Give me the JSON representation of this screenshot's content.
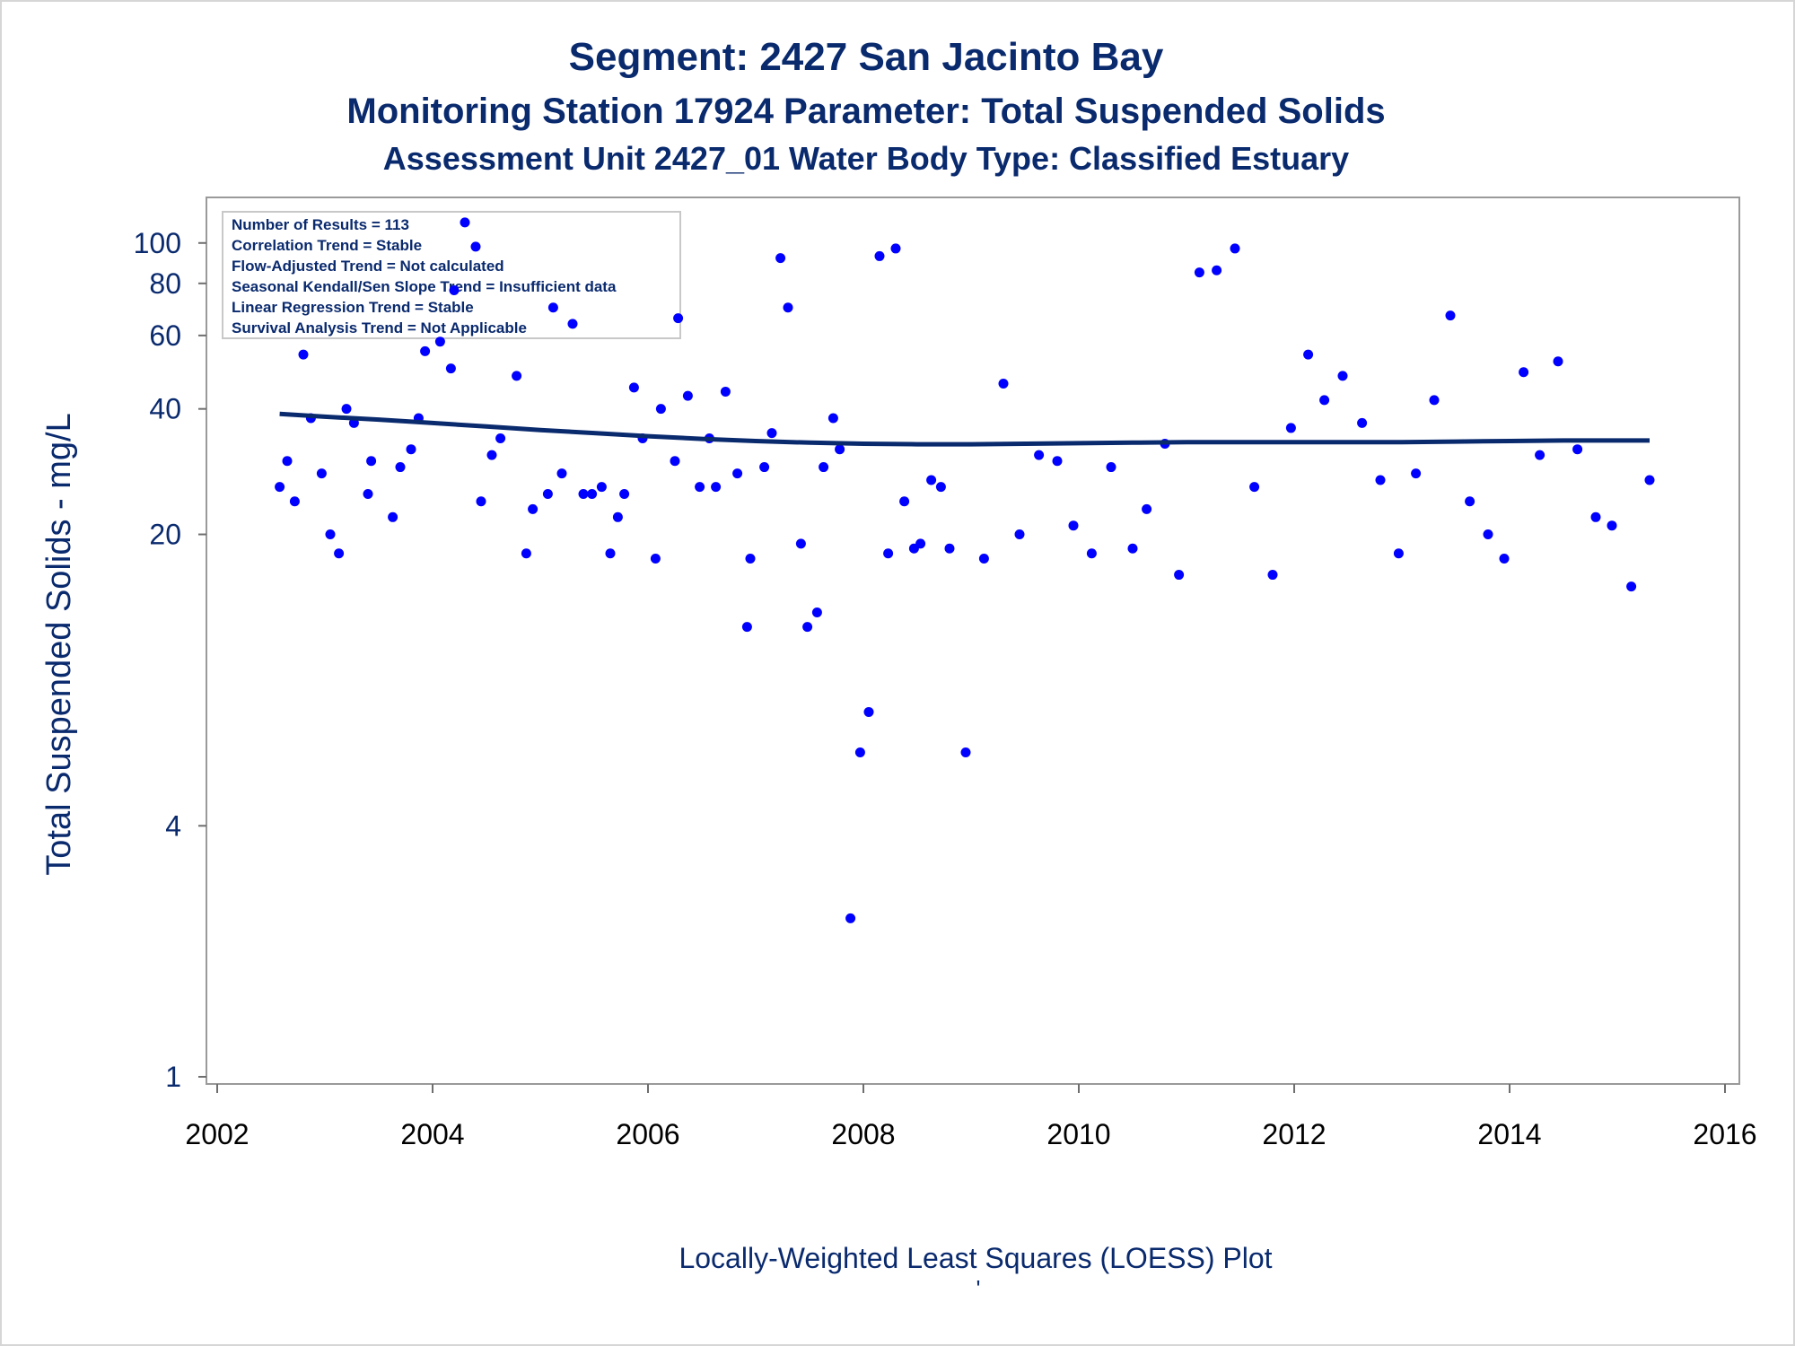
{
  "chart_data": {
    "type": "scatter",
    "title": "Segment: 2427  San Jacinto Bay",
    "subtitle1": "Monitoring Station 17924 Parameter: Total Suspended Solids",
    "subtitle2": "Assessment Unit 2427_01   Water Body Type: Classified Estuary",
    "ylabel": "Total Suspended Solids - mg/L",
    "footnote": "Locally-Weighted Least Squares (LOESS) Plot",
    "footnote_mark": "'",
    "xlim": [
      2002,
      2016
    ],
    "ylim": [
      1,
      120
    ],
    "yscale": "log",
    "xticks": [
      2002,
      2004,
      2006,
      2008,
      2010,
      2012,
      2014,
      2016
    ],
    "xtick_labels": [
      "2002",
      "2004",
      "2006",
      "2008",
      "2010",
      "2012",
      "2014",
      "2016"
    ],
    "yticks": [
      1,
      4,
      20,
      40,
      60,
      80,
      100
    ],
    "ytick_labels": [
      "1",
      "4",
      "20",
      "40",
      "60",
      "80",
      "100"
    ],
    "grid": false,
    "stats_box": [
      "Number of Results = 113",
      "Correlation Trend = Stable",
      "Flow-Adjusted Trend = Not calculated",
      "Seasonal Kendall/Sen Slope Trend = Insufficient data",
      "Linear Regression Trend = Stable",
      "Survival Analysis Trend = Not Applicable"
    ],
    "colors": {
      "points": "#0000ff",
      "loess": "#0a2a6e",
      "text": "#0a2a6e",
      "axes": "#9a9a9a"
    },
    "points": [
      {
        "x": 2002.58,
        "y": 26
      },
      {
        "x": 2002.65,
        "y": 30
      },
      {
        "x": 2002.72,
        "y": 24
      },
      {
        "x": 2002.8,
        "y": 54
      },
      {
        "x": 2002.87,
        "y": 38
      },
      {
        "x": 2002.97,
        "y": 28
      },
      {
        "x": 2003.05,
        "y": 20
      },
      {
        "x": 2003.13,
        "y": 18
      },
      {
        "x": 2003.2,
        "y": 40
      },
      {
        "x": 2003.27,
        "y": 37
      },
      {
        "x": 2003.4,
        "y": 25
      },
      {
        "x": 2003.43,
        "y": 30
      },
      {
        "x": 2003.63,
        "y": 22
      },
      {
        "x": 2003.7,
        "y": 29
      },
      {
        "x": 2003.8,
        "y": 32
      },
      {
        "x": 2003.87,
        "y": 38
      },
      {
        "x": 2003.93,
        "y": 55
      },
      {
        "x": 2004.07,
        "y": 58
      },
      {
        "x": 2004.17,
        "y": 50
      },
      {
        "x": 2004.2,
        "y": 77
      },
      {
        "x": 2004.3,
        "y": 112
      },
      {
        "x": 2004.4,
        "y": 98
      },
      {
        "x": 2004.45,
        "y": 24
      },
      {
        "x": 2004.55,
        "y": 31
      },
      {
        "x": 2004.63,
        "y": 34
      },
      {
        "x": 2004.78,
        "y": 48
      },
      {
        "x": 2004.87,
        "y": 18
      },
      {
        "x": 2004.93,
        "y": 23
      },
      {
        "x": 2005.07,
        "y": 25
      },
      {
        "x": 2005.12,
        "y": 70
      },
      {
        "x": 2005.2,
        "y": 28
      },
      {
        "x": 2005.3,
        "y": 64
      },
      {
        "x": 2005.4,
        "y": 25
      },
      {
        "x": 2005.48,
        "y": 25
      },
      {
        "x": 2005.57,
        "y": 26
      },
      {
        "x": 2005.65,
        "y": 18
      },
      {
        "x": 2005.72,
        "y": 22
      },
      {
        "x": 2005.78,
        "y": 25
      },
      {
        "x": 2005.87,
        "y": 45
      },
      {
        "x": 2005.95,
        "y": 34
      },
      {
        "x": 2006.07,
        "y": 17.5
      },
      {
        "x": 2006.12,
        "y": 40
      },
      {
        "x": 2006.25,
        "y": 30
      },
      {
        "x": 2006.28,
        "y": 66
      },
      {
        "x": 2006.37,
        "y": 43
      },
      {
        "x": 2006.48,
        "y": 26
      },
      {
        "x": 2006.57,
        "y": 34
      },
      {
        "x": 2006.63,
        "y": 26
      },
      {
        "x": 2006.72,
        "y": 44
      },
      {
        "x": 2006.83,
        "y": 28
      },
      {
        "x": 2006.92,
        "y": 12
      },
      {
        "x": 2006.95,
        "y": 17.5
      },
      {
        "x": 2007.08,
        "y": 29
      },
      {
        "x": 2007.15,
        "y": 35
      },
      {
        "x": 2007.23,
        "y": 92
      },
      {
        "x": 2007.3,
        "y": 70
      },
      {
        "x": 2007.42,
        "y": 19
      },
      {
        "x": 2007.48,
        "y": 12
      },
      {
        "x": 2007.57,
        "y": 13
      },
      {
        "x": 2007.63,
        "y": 29
      },
      {
        "x": 2007.72,
        "y": 38
      },
      {
        "x": 2007.78,
        "y": 32
      },
      {
        "x": 2007.88,
        "y": 2.4
      },
      {
        "x": 2007.97,
        "y": 6
      },
      {
        "x": 2008.05,
        "y": 7.5
      },
      {
        "x": 2008.15,
        "y": 93
      },
      {
        "x": 2008.23,
        "y": 18
      },
      {
        "x": 2008.3,
        "y": 97
      },
      {
        "x": 2008.38,
        "y": 24
      },
      {
        "x": 2008.47,
        "y": 18.5
      },
      {
        "x": 2008.53,
        "y": 19
      },
      {
        "x": 2008.63,
        "y": 27
      },
      {
        "x": 2008.72,
        "y": 26
      },
      {
        "x": 2008.8,
        "y": 18.5
      },
      {
        "x": 2008.95,
        "y": 6
      },
      {
        "x": 2009.12,
        "y": 17.5
      },
      {
        "x": 2009.3,
        "y": 46
      },
      {
        "x": 2009.45,
        "y": 20
      },
      {
        "x": 2009.63,
        "y": 31
      },
      {
        "x": 2009.8,
        "y": 30
      },
      {
        "x": 2009.95,
        "y": 21
      },
      {
        "x": 2010.12,
        "y": 18
      },
      {
        "x": 2010.3,
        "y": 29
      },
      {
        "x": 2010.5,
        "y": 18.5
      },
      {
        "x": 2010.63,
        "y": 23
      },
      {
        "x": 2010.8,
        "y": 33
      },
      {
        "x": 2010.93,
        "y": 16
      },
      {
        "x": 2011.12,
        "y": 85
      },
      {
        "x": 2011.28,
        "y": 86
      },
      {
        "x": 2011.45,
        "y": 97
      },
      {
        "x": 2011.63,
        "y": 26
      },
      {
        "x": 2011.8,
        "y": 16
      },
      {
        "x": 2011.97,
        "y": 36
      },
      {
        "x": 2012.13,
        "y": 54
      },
      {
        "x": 2012.28,
        "y": 42
      },
      {
        "x": 2012.45,
        "y": 48
      },
      {
        "x": 2012.63,
        "y": 37
      },
      {
        "x": 2012.8,
        "y": 27
      },
      {
        "x": 2012.97,
        "y": 18
      },
      {
        "x": 2013.13,
        "y": 28
      },
      {
        "x": 2013.3,
        "y": 42
      },
      {
        "x": 2013.45,
        "y": 67
      },
      {
        "x": 2013.63,
        "y": 24
      },
      {
        "x": 2013.8,
        "y": 20
      },
      {
        "x": 2013.95,
        "y": 17.5
      },
      {
        "x": 2014.13,
        "y": 49
      },
      {
        "x": 2014.28,
        "y": 31
      },
      {
        "x": 2014.45,
        "y": 52
      },
      {
        "x": 2014.63,
        "y": 32
      },
      {
        "x": 2014.8,
        "y": 22
      },
      {
        "x": 2014.95,
        "y": 21
      },
      {
        "x": 2015.13,
        "y": 15
      },
      {
        "x": 2015.3,
        "y": 27
      }
    ],
    "loess": [
      {
        "x": 2002.58,
        "y": 38.9
      },
      {
        "x": 2003.0,
        "y": 38.3
      },
      {
        "x": 2003.5,
        "y": 37.7
      },
      {
        "x": 2004.0,
        "y": 37.0
      },
      {
        "x": 2004.5,
        "y": 36.3
      },
      {
        "x": 2005.0,
        "y": 35.6
      },
      {
        "x": 2005.5,
        "y": 35.0
      },
      {
        "x": 2006.0,
        "y": 34.4
      },
      {
        "x": 2006.5,
        "y": 33.9
      },
      {
        "x": 2007.0,
        "y": 33.5
      },
      {
        "x": 2007.5,
        "y": 33.2
      },
      {
        "x": 2008.0,
        "y": 33.0
      },
      {
        "x": 2008.5,
        "y": 32.9
      },
      {
        "x": 2009.0,
        "y": 32.9
      },
      {
        "x": 2009.5,
        "y": 33.0
      },
      {
        "x": 2010.0,
        "y": 33.1
      },
      {
        "x": 2010.5,
        "y": 33.2
      },
      {
        "x": 2011.0,
        "y": 33.3
      },
      {
        "x": 2011.5,
        "y": 33.3
      },
      {
        "x": 2012.0,
        "y": 33.3
      },
      {
        "x": 2012.5,
        "y": 33.3
      },
      {
        "x": 2013.0,
        "y": 33.3
      },
      {
        "x": 2013.5,
        "y": 33.4
      },
      {
        "x": 2014.0,
        "y": 33.5
      },
      {
        "x": 2014.5,
        "y": 33.6
      },
      {
        "x": 2015.0,
        "y": 33.6
      },
      {
        "x": 2015.3,
        "y": 33.6
      }
    ]
  }
}
